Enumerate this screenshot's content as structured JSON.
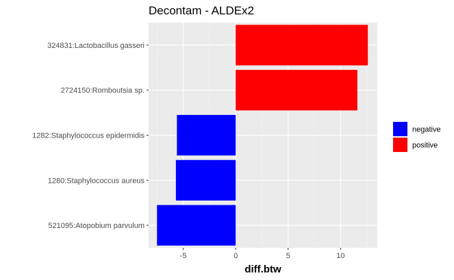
{
  "chart_data": {
    "type": "bar",
    "orientation": "horizontal",
    "title": "Decontam - ALDEx2",
    "xlabel": "diff.btw",
    "ylabel": "",
    "xlim": [
      -8.3,
      13.5
    ],
    "xticks": [
      -5,
      0,
      5,
      10
    ],
    "grid": true,
    "legend_position": "right",
    "categories": [
      "324831:Lactobacillus gasseri",
      "2724150:Romboutsia sp.",
      "1282:Staphylococcus epidermidis",
      "1280:Staphylococcus aureus",
      "521095:Atopobium parvulum"
    ],
    "values": [
      12.6,
      11.6,
      -5.6,
      -5.7,
      -7.5
    ],
    "groups": [
      "positive",
      "positive",
      "negative",
      "negative",
      "negative"
    ],
    "legend": [
      {
        "label": "negative",
        "color": "#0000ff"
      },
      {
        "label": "positive",
        "color": "#ff0000"
      }
    ]
  }
}
